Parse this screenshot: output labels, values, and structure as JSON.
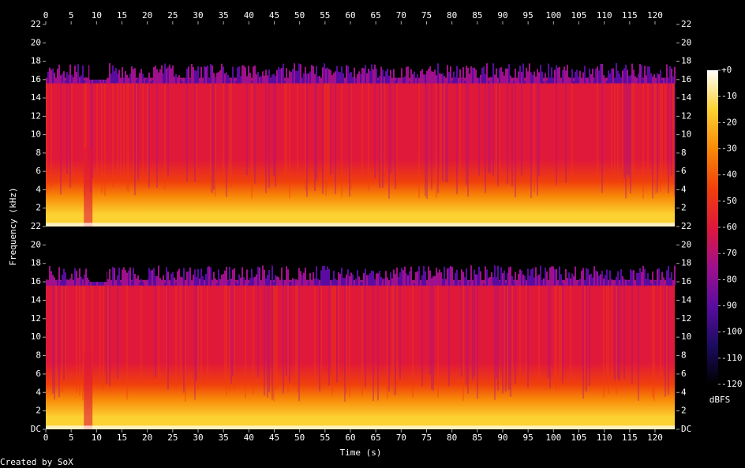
{
  "chart_data": {
    "type": "spectrogram",
    "x_label": "Time (s)",
    "y_label": "Frequency (kHz)",
    "footer": "Created by SoX",
    "xlim": [
      0,
      124.2
    ],
    "xticks": [
      0,
      5,
      10,
      15,
      20,
      25,
      30,
      35,
      40,
      45,
      50,
      55,
      60,
      65,
      70,
      75,
      80,
      85,
      90,
      95,
      100,
      105,
      110,
      115,
      120
    ],
    "channels": [
      {
        "ylim": [
          0,
          22
        ],
        "yticks": [
          2,
          4,
          6,
          8,
          10,
          12,
          14,
          16,
          18,
          20,
          22
        ]
      },
      {
        "ylim": [
          0,
          22
        ],
        "yticks": [
          {
            "value": 0,
            "label": "DC"
          },
          2,
          4,
          6,
          8,
          10,
          12,
          14,
          16,
          18,
          20,
          22
        ]
      }
    ],
    "colorbar": {
      "label": "dBFS",
      "lim": [
        -120,
        0
      ],
      "ticks": [
        {
          "value": 0,
          "label": "+0"
        },
        -10,
        -20,
        -30,
        -40,
        -50,
        -60,
        -70,
        -80,
        -90,
        -100,
        -110,
        -120
      ],
      "colors": [
        "#000000",
        "#1c0c60",
        "#5a0ca0",
        "#a0108c",
        "#e0183a",
        "#f0400c",
        "#f88a08",
        "#fcd232",
        "#ffffff"
      ]
    }
  }
}
